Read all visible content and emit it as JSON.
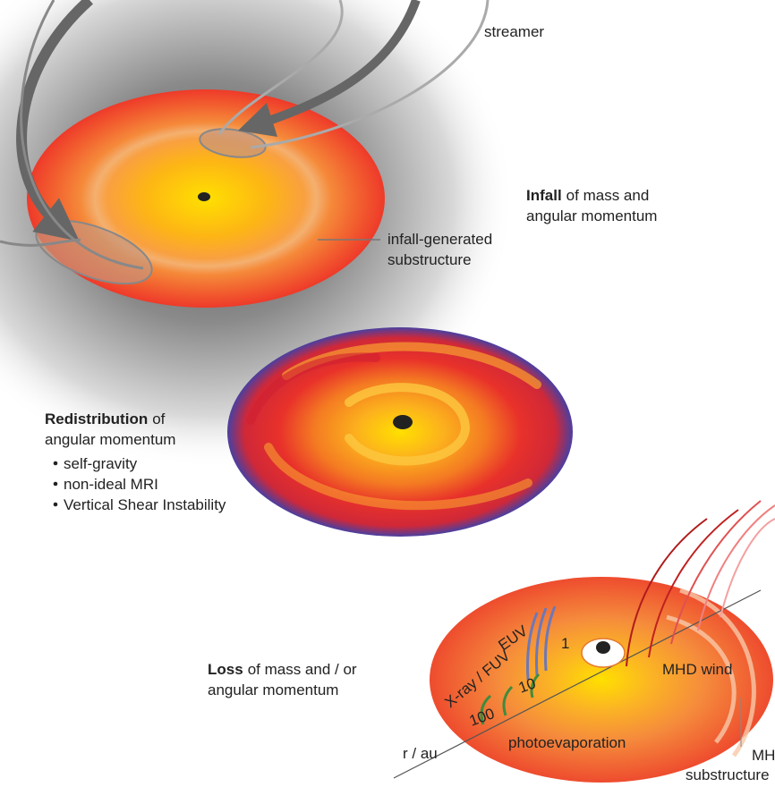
{
  "labels": {
    "streamer": "streamer",
    "infall_substructure": [
      "infall-generated",
      "substructure"
    ],
    "euv": "EUV",
    "xray_fuv": "X-ray / FUV",
    "radii": [
      "100",
      "10",
      "1"
    ],
    "mhd_wind": "MHD wind",
    "photoevaporation": "photoevaporation",
    "r_axis": "r / au",
    "mhd_substructure": [
      "MHD",
      "substructure"
    ]
  },
  "sections": [
    {
      "bold": "Infall",
      "lines": [
        "of mass and",
        "angular momentum"
      ]
    },
    {
      "bold": "Redistribution",
      "lines": [
        "of",
        "angular momentum"
      ],
      "bullets": [
        "self-gravity",
        "non-ideal MRI",
        "Vertical Shear Instability"
      ]
    },
    {
      "bold": "Loss",
      "lines": [
        "of mass and / or",
        "angular momentum"
      ]
    }
  ]
}
